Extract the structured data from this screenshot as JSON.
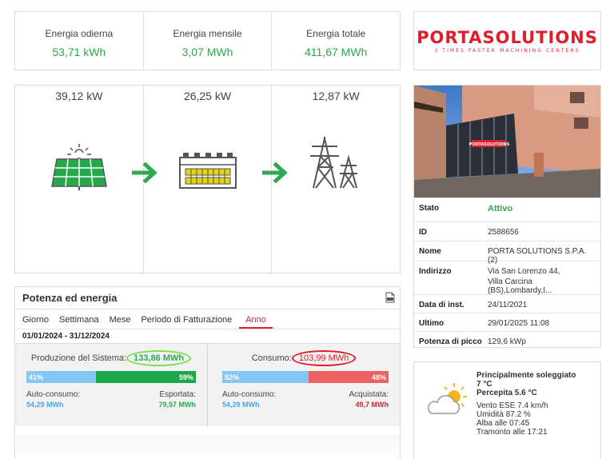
{
  "energy": [
    {
      "label": "Energia odierna",
      "value": "53,71 kWh"
    },
    {
      "label": "Energia mensile",
      "value": "3,07 MWh"
    },
    {
      "label": "Energia totale",
      "value": "411,67 MWh"
    }
  ],
  "logo": {
    "name": "PORTASOLUTIONS",
    "tagline": "3 TIMES FASTER MACHINING CENTERS"
  },
  "flow": {
    "solar_power": "39,12 kW",
    "consumption_power": "26,25 kW",
    "grid_power": "12,87 kW",
    "icons": [
      "solar-panel-icon",
      "factory-icon",
      "power-tower-icon"
    ]
  },
  "info": {
    "photo_sign": "PORTASOLUTIONS",
    "rows": [
      {
        "key": "Stato",
        "value": "Attivo"
      },
      {
        "key": "ID",
        "value": "2588656"
      },
      {
        "key": "Nome",
        "value": "PORTA SOLUTIONS S.P.A. (2)"
      },
      {
        "key": "Indirizzo",
        "value": "Via San Lorenzo 44,",
        "value2": "Villa Carcina (BS),Lombardy,I..."
      },
      {
        "key": "Data di inst.",
        "value": "24/11/2021"
      },
      {
        "key": "Ultimo",
        "value": "29/01/2025 11:08"
      },
      {
        "key": "Potenza di picco",
        "value": "129,6 kWp"
      }
    ]
  },
  "power": {
    "title": "Potenza ed energia",
    "tabs": [
      "Giorno",
      "Settimana",
      "Mese",
      "Periodo di Fatturazione",
      "Anno"
    ],
    "active_tab": "Anno",
    "date_range": "01/01/2024 - 31/12/2024",
    "production": {
      "label": "Produzione del Sistema:",
      "value": "133,86 MWh",
      "self_pct": "41%",
      "export_pct": "59%",
      "self_fraction": 0.41,
      "self_label": "Auto-consumo:",
      "self_value": "54,29 MWh",
      "export_label": "Esportata:",
      "export_value": "79,57 MWh"
    },
    "consumption": {
      "label": "Consumo:",
      "value": "103,99 MWh",
      "self_pct": "52%",
      "bought_pct": "48%",
      "self_fraction": 0.52,
      "self_label": "Auto-consumo:",
      "self_value": "54,29 MWh",
      "bought_label": "Acquistata:",
      "bought_value": "49,7 MWh"
    }
  },
  "weather": {
    "condition": "Principalmente soleggiato",
    "temperature": "7 °C",
    "feels_like": "Percepita 5.6 °C",
    "wind": "Vento ESE 7.4 km/h",
    "humidity": "Umidità 87.2 %",
    "sunrise": "Alba alle 07:45",
    "sunset": "Tramonto alle 17:21",
    "icon": "partly-cloudy-icon"
  },
  "colors": {
    "accent": "#e01e2b",
    "green": "#2fa84f",
    "blue_bar": "#86c6f3",
    "green_bar": "#1aa84a",
    "red_bar": "#ec6161"
  }
}
